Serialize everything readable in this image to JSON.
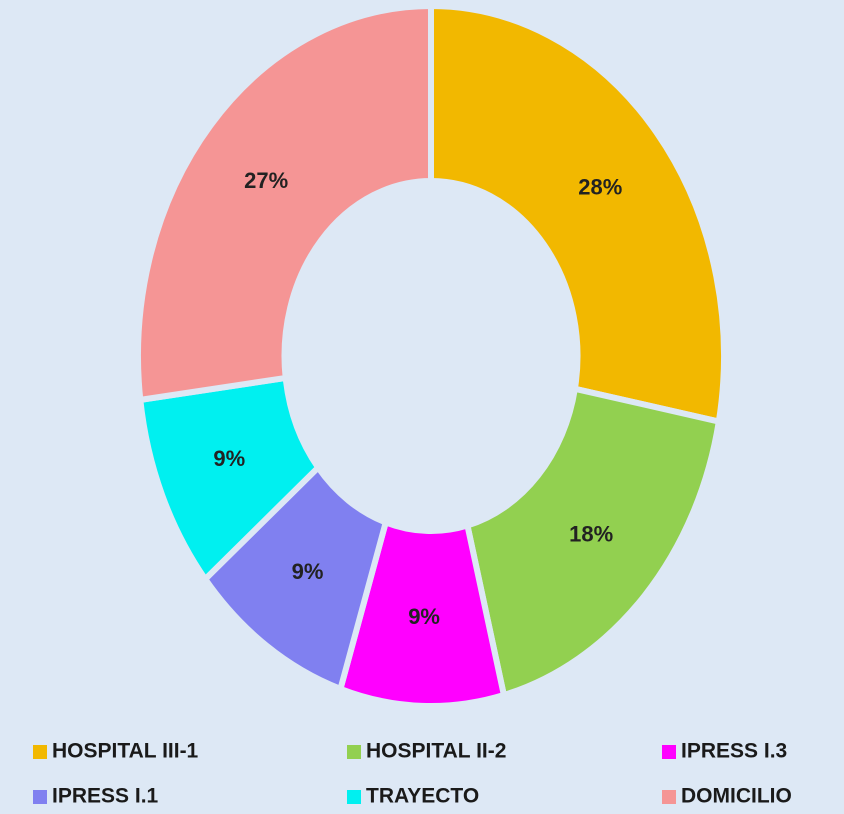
{
  "chart_data": {
    "type": "donut",
    "categories": [
      "HOSPITAL III-1",
      "HOSPITAL II-2",
      "IPRESS I.3",
      "IPRESS I.1",
      "TRAYECTO",
      "DOMICILIO"
    ],
    "values": [
      28,
      18,
      9,
      9,
      9,
      27
    ],
    "value_labels": [
      "28%",
      "18%",
      "9%",
      "9%",
      "9%",
      "27%"
    ],
    "colors": [
      "#f2b800",
      "#92d050",
      "#ff00ff",
      "#8080f0",
      "#00f0f0",
      "#f59595"
    ],
    "legend": "bottom"
  }
}
